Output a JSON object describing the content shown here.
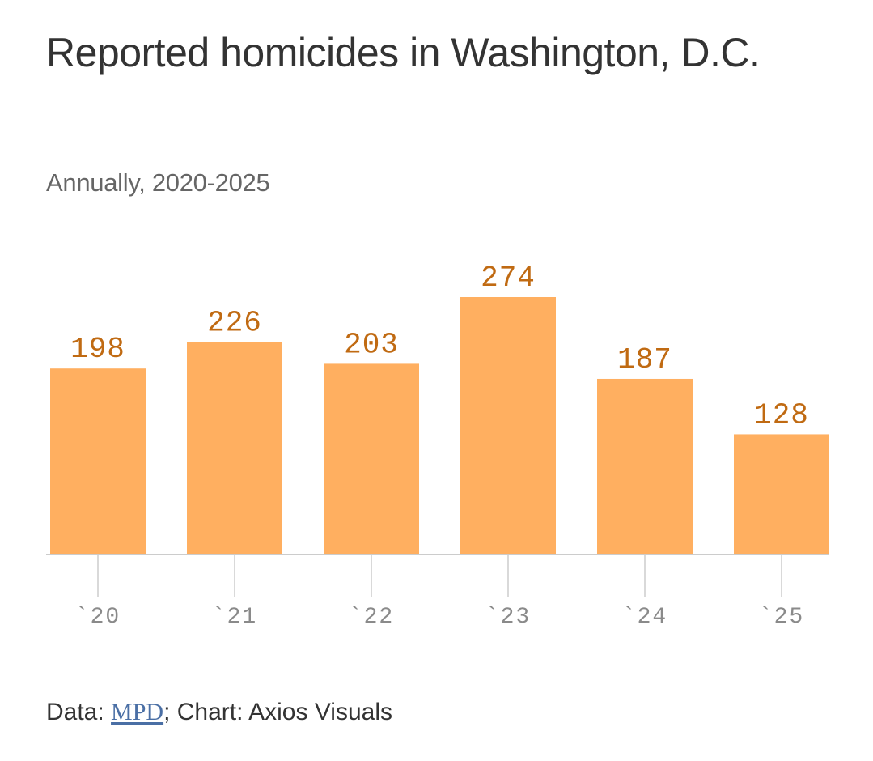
{
  "header": {
    "title": "Reported homicides in Washington, D.C.",
    "subtitle": "Annually, 2020-2025"
  },
  "footer": {
    "data_prefix": "Data: ",
    "source_link": "MPD",
    "chart_credit": "; Chart: Axios Visuals"
  },
  "colors": {
    "bar": "#ffaf60",
    "value_label": "#c06a12",
    "axis": "#cccccc",
    "tick_label": "#8a8a8a"
  },
  "chart_data": {
    "type": "bar",
    "title": "Reported homicides in Washington, D.C.",
    "subtitle": "Annually, 2020-2025",
    "categories": [
      "`20",
      "`21",
      "`22",
      "`23",
      "`24",
      "`25"
    ],
    "values": [
      198,
      226,
      203,
      274,
      187,
      128
    ],
    "xlabel": "",
    "ylabel": "",
    "ylim": [
      0,
      274
    ],
    "grid": false,
    "data_labels": true
  }
}
